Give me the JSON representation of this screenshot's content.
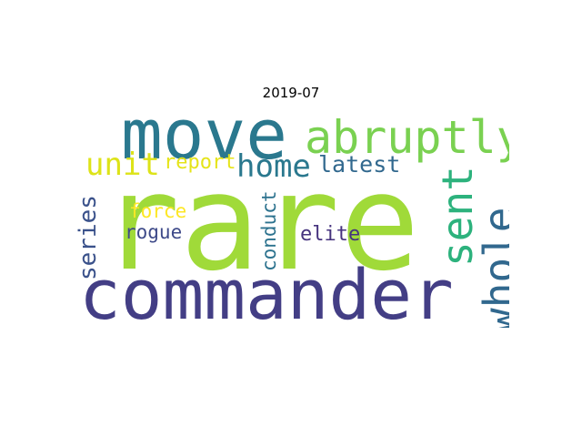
{
  "title": "2019-07",
  "words": {
    "rare": {
      "text": "rare",
      "color": "#a0da39"
    },
    "commander": {
      "text": "commander",
      "color": "#433e85"
    },
    "move": {
      "text": "move",
      "color": "#2a788e"
    },
    "abruptly": {
      "text": "abruptly",
      "color": "#7ad151"
    },
    "whole": {
      "text": "whole",
      "color": "#31688e"
    },
    "sent": {
      "text": "sent",
      "color": "#2db27d"
    },
    "home": {
      "text": "home",
      "color": "#2a788e"
    },
    "unit": {
      "text": "unit",
      "color": "#dde318"
    },
    "latest": {
      "text": "latest",
      "color": "#31688e"
    },
    "report": {
      "text": "report",
      "color": "#e5e419"
    },
    "series": {
      "text": "series",
      "color": "#3b528b"
    },
    "force": {
      "text": "force",
      "color": "#fde725"
    },
    "rogue": {
      "text": "rogue",
      "color": "#3e4a89"
    },
    "conduct": {
      "text": "conduct",
      "color": "#2c728e"
    },
    "elite": {
      "text": "elite",
      "color": "#46337e"
    }
  }
}
